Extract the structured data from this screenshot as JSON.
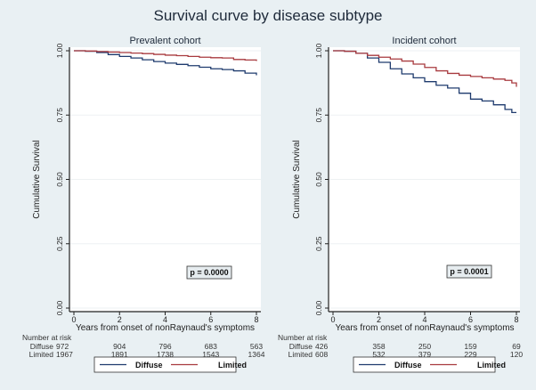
{
  "chart_data": {
    "title": "Survival curve by disease subtype",
    "type": "line",
    "series_colors": {
      "Diffuse": "#1f3b6e",
      "Limited": "#a83a3f"
    },
    "panels": [
      {
        "title": "Prevalent cohort",
        "xlabel": "Years from onset of nonRaynaud's symptoms",
        "ylabel": "Cumulative Survival",
        "xlim": [
          0,
          8
        ],
        "ylim": [
          0,
          1
        ],
        "xticks": [
          "0",
          "2",
          "4",
          "6",
          "8"
        ],
        "yticks": [
          "0.00",
          "0.25",
          "0.50",
          "0.75",
          "1.00"
        ],
        "grid": true,
        "p_value": "p = 0.0000",
        "series": [
          {
            "name": "Diffuse",
            "x": [
              0,
              0.5,
              1,
              1.5,
              2,
              2.5,
              3,
              3.5,
              4,
              4.5,
              5,
              5.5,
              6,
              6.5,
              7,
              7.5,
              8
            ],
            "y": [
              1.0,
              0.998,
              0.993,
              0.985,
              0.978,
              0.972,
              0.965,
              0.958,
              0.952,
              0.947,
              0.942,
              0.936,
              0.93,
              0.927,
              0.922,
              0.913,
              0.905
            ]
          },
          {
            "name": "Limited",
            "x": [
              0,
              0.5,
              1,
              1.5,
              2,
              2.5,
              3,
              3.5,
              4,
              4.5,
              5,
              5.5,
              6,
              6.5,
              7,
              7.5,
              8
            ],
            "y": [
              1.0,
              0.999,
              0.997,
              0.995,
              0.993,
              0.991,
              0.989,
              0.986,
              0.983,
              0.981,
              0.978,
              0.975,
              0.973,
              0.972,
              0.966,
              0.964,
              0.96
            ]
          }
        ],
        "risk_table": {
          "header": "Number at risk",
          "rows": [
            {
              "label": "Diffuse",
              "values": [
                "972",
                "904",
                "796",
                "683",
                "563"
              ]
            },
            {
              "label": "Limited",
              "values": [
                "1967",
                "1891",
                "1738",
                "1543",
                "1364"
              ]
            }
          ]
        },
        "legend": [
          "Diffuse",
          "Limited"
        ],
        "legend_placement": "bottom"
      },
      {
        "title": "Incident cohort",
        "xlabel": "Years from onset of nonRaynaud's symptoms",
        "ylabel": "Cumulative Survival",
        "xlim": [
          0,
          8
        ],
        "ylim": [
          0,
          1
        ],
        "xticks": [
          "0",
          "2",
          "4",
          "6",
          "8"
        ],
        "yticks": [
          "0.00",
          "0.25",
          "0.50",
          "0.75",
          "1.00"
        ],
        "grid": true,
        "p_value": "p = 0.0001",
        "series": [
          {
            "name": "Diffuse",
            "x": [
              0,
              0.5,
              1,
              1.5,
              2,
              2.5,
              3,
              3.5,
              4,
              4.5,
              5,
              5.5,
              6,
              6.5,
              7,
              7.5,
              7.8,
              8
            ],
            "y": [
              1.0,
              0.998,
              0.99,
              0.972,
              0.955,
              0.93,
              0.91,
              0.895,
              0.88,
              0.866,
              0.855,
              0.835,
              0.812,
              0.805,
              0.79,
              0.772,
              0.76,
              0.76
            ]
          },
          {
            "name": "Limited",
            "x": [
              0,
              0.5,
              1,
              1.5,
              2,
              2.5,
              3,
              3.5,
              4,
              4.5,
              5,
              5.5,
              6,
              6.5,
              7,
              7.5,
              7.8,
              8
            ],
            "y": [
              1.0,
              0.998,
              0.99,
              0.982,
              0.975,
              0.968,
              0.96,
              0.948,
              0.935,
              0.922,
              0.912,
              0.905,
              0.9,
              0.895,
              0.89,
              0.885,
              0.875,
              0.86
            ]
          }
        ],
        "risk_table": {
          "header": "Number at risk",
          "rows": [
            {
              "label": "Diffuse",
              "values": [
                "426",
                "358",
                "250",
                "159",
                "69"
              ]
            },
            {
              "label": "Limited",
              "values": [
                "608",
                "532",
                "379",
                "229",
                "120"
              ]
            }
          ]
        },
        "legend": [
          "Diffuse",
          "Limited"
        ],
        "legend_placement": "bottom"
      }
    ]
  }
}
